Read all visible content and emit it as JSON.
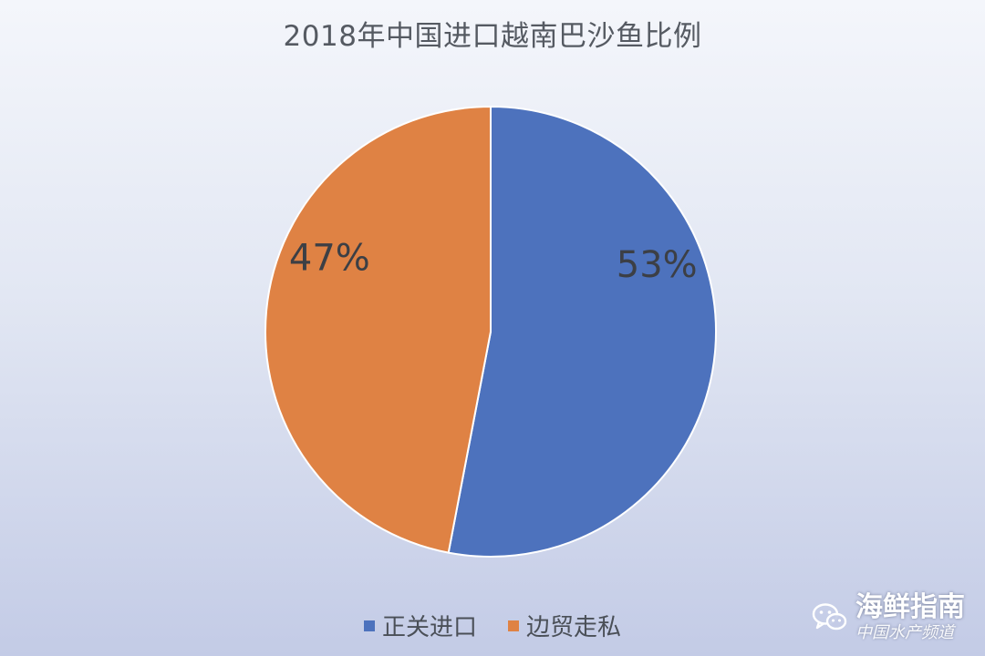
{
  "chart_data": {
    "type": "pie",
    "title": "2018年中国进口越南巴沙鱼比例",
    "slices": [
      {
        "name": "正关进口",
        "value": 53,
        "label": "53%",
        "color": "#4d72bd"
      },
      {
        "name": "边贸走私",
        "value": 47,
        "label": "47%",
        "color": "#df8244"
      }
    ],
    "legend_position": "bottom"
  },
  "watermark": {
    "name": "海鲜指南",
    "subtitle": "中国水产频道",
    "icon": "wechat-icon"
  }
}
